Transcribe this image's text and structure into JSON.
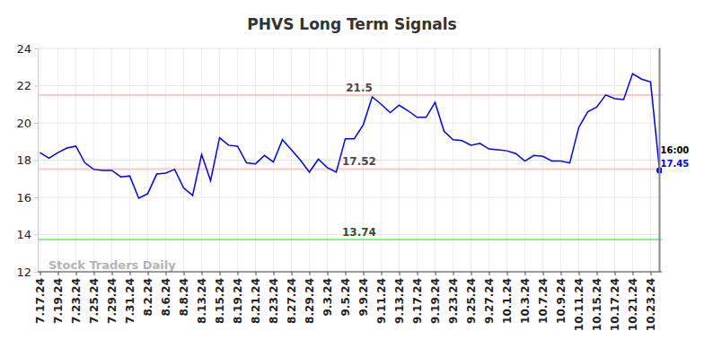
{
  "chart_data": {
    "type": "line",
    "title": "PHVS Long Term Signals",
    "watermark": "Stock Traders Daily",
    "time_label": "16:00",
    "categories": [
      "7.17.24",
      null,
      "7.19.24",
      null,
      "7.23.24",
      null,
      "7.25.24",
      null,
      "7.29.24",
      null,
      "7.31.24",
      null,
      "8.2.24",
      null,
      "8.6.24",
      null,
      "8.8.24",
      null,
      "8.13.24",
      null,
      "8.15.24",
      null,
      "8.19.24",
      null,
      "8.21.24",
      null,
      "8.23.24",
      null,
      "8.27.24",
      null,
      "8.29.24",
      null,
      "9.3.24",
      null,
      "9.5.24",
      null,
      "9.9.24",
      null,
      "9.11.24",
      null,
      "9.13.24",
      null,
      "9.17.24",
      null,
      "9.19.24",
      null,
      "9.23.24",
      null,
      "9.25.24",
      null,
      "9.27.24",
      null,
      "10.1.24",
      null,
      "10.3.24",
      null,
      "10.7.24",
      null,
      "10.9.24",
      null,
      "10.11.24",
      null,
      "10.15.24",
      null,
      "10.17.24",
      null,
      "10.21.24",
      null,
      "10.23.24",
      null
    ],
    "series": [
      {
        "name": "PHVS",
        "color": "#0000ff",
        "values": [
          18.4,
          18.1,
          18.4,
          18.65,
          18.75,
          17.85,
          17.5,
          17.45,
          17.45,
          17.1,
          17.15,
          15.95,
          16.2,
          17.25,
          17.3,
          17.5,
          16.5,
          16.1,
          18.3,
          16.9,
          19.2,
          18.8,
          18.75,
          17.85,
          17.8,
          18.25,
          17.9,
          19.1,
          18.55,
          18.0,
          17.35,
          18.05,
          17.6,
          17.35,
          19.15,
          19.15,
          19.9,
          21.4,
          21.0,
          20.55,
          20.95,
          20.65,
          20.3,
          20.3,
          21.1,
          19.55,
          19.1,
          19.05,
          18.8,
          18.9,
          18.6,
          18.55,
          18.5,
          18.35,
          17.95,
          18.25,
          18.2,
          17.95,
          17.95,
          17.85,
          19.75,
          20.6,
          20.85,
          21.5,
          21.3,
          21.25,
          22.65,
          22.35,
          22.2,
          17.45
        ]
      }
    ],
    "reference_lines": [
      {
        "value": 21.5,
        "color": "#ffc8c8"
      },
      {
        "value": 17.52,
        "color": "#ffc8c8"
      },
      {
        "value": 13.74,
        "color": "#90ee90"
      }
    ],
    "ylim": [
      12,
      24
    ],
    "yticks": [
      12,
      14,
      16,
      18,
      20,
      22,
      24
    ],
    "grid": true
  }
}
